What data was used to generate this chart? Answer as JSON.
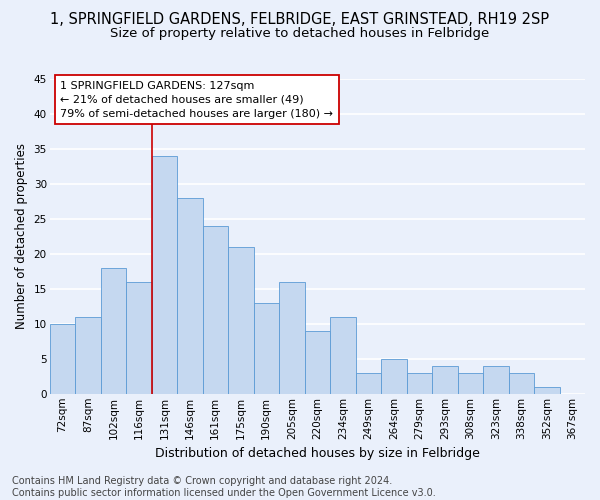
{
  "title": "1, SPRINGFIELD GARDENS, FELBRIDGE, EAST GRINSTEAD, RH19 2SP",
  "subtitle": "Size of property relative to detached houses in Felbridge",
  "xlabel": "Distribution of detached houses by size in Felbridge",
  "ylabel": "Number of detached properties",
  "categories": [
    "72sqm",
    "87sqm",
    "102sqm",
    "116sqm",
    "131sqm",
    "146sqm",
    "161sqm",
    "175sqm",
    "190sqm",
    "205sqm",
    "220sqm",
    "234sqm",
    "249sqm",
    "264sqm",
    "279sqm",
    "293sqm",
    "308sqm",
    "323sqm",
    "338sqm",
    "352sqm",
    "367sqm"
  ],
  "values": [
    10,
    11,
    18,
    16,
    34,
    28,
    24,
    21,
    13,
    16,
    9,
    11,
    3,
    5,
    3,
    4,
    3,
    4,
    3,
    1,
    0
  ],
  "bar_color": "#c5d8f0",
  "bar_edge_color": "#5b9bd5",
  "background_color": "#eaf0fb",
  "grid_color": "#ffffff",
  "marker_line_color": "#cc0000",
  "annotation_text": "1 SPRINGFIELD GARDENS: 127sqm\n← 21% of detached houses are smaller (49)\n79% of semi-detached houses are larger (180) →",
  "annotation_box_color": "#ffffff",
  "annotation_box_edge_color": "#cc0000",
  "ylim": [
    0,
    45
  ],
  "yticks": [
    0,
    5,
    10,
    15,
    20,
    25,
    30,
    35,
    40,
    45
  ],
  "footnote": "Contains HM Land Registry data © Crown copyright and database right 2024.\nContains public sector information licensed under the Open Government Licence v3.0.",
  "title_fontsize": 10.5,
  "subtitle_fontsize": 9.5,
  "xlabel_fontsize": 9,
  "ylabel_fontsize": 8.5,
  "tick_fontsize": 7.5,
  "annotation_fontsize": 8,
  "footnote_fontsize": 7
}
